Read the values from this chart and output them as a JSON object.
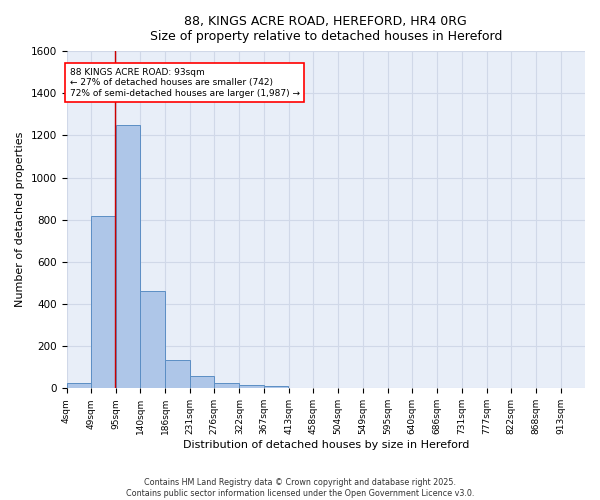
{
  "title_line1": "88, KINGS ACRE ROAD, HEREFORD, HR4 0RG",
  "title_line2": "Size of property relative to detached houses in Hereford",
  "xlabel": "Distribution of detached houses by size in Hereford",
  "ylabel": "Number of detached properties",
  "bin_labels": [
    "4sqm",
    "49sqm",
    "95sqm",
    "140sqm",
    "186sqm",
    "231sqm",
    "276sqm",
    "322sqm",
    "367sqm",
    "413sqm",
    "458sqm",
    "504sqm",
    "549sqm",
    "595sqm",
    "640sqm",
    "686sqm",
    "731sqm",
    "777sqm",
    "822sqm",
    "868sqm",
    "913sqm"
  ],
  "bar_values": [
    25,
    820,
    1250,
    460,
    135,
    58,
    25,
    14,
    10,
    0,
    0,
    0,
    0,
    0,
    0,
    0,
    0,
    0,
    0,
    0,
    0
  ],
  "bar_color": "#aec6e8",
  "bar_edge_color": "#5b8ec4",
  "grid_color": "#d0d8e8",
  "background_color": "#e8eef8",
  "annotation_text": "88 KINGS ACRE ROAD: 93sqm\n← 27% of detached houses are smaller (742)\n72% of semi-detached houses are larger (1,987) →",
  "red_line_x": 93,
  "vline_color": "#cc0000",
  "ylim": [
    0,
    1600
  ],
  "yticks": [
    0,
    200,
    400,
    600,
    800,
    1000,
    1200,
    1400,
    1600
  ],
  "footnote": "Contains HM Land Registry data © Crown copyright and database right 2025.\nContains public sector information licensed under the Open Government Licence v3.0.",
  "bin_starts": [
    4,
    49,
    95,
    140,
    186,
    231,
    276,
    322,
    367,
    413,
    458,
    504,
    549,
    595,
    640,
    686,
    731,
    777,
    822,
    868,
    913
  ],
  "bin_width": 45
}
